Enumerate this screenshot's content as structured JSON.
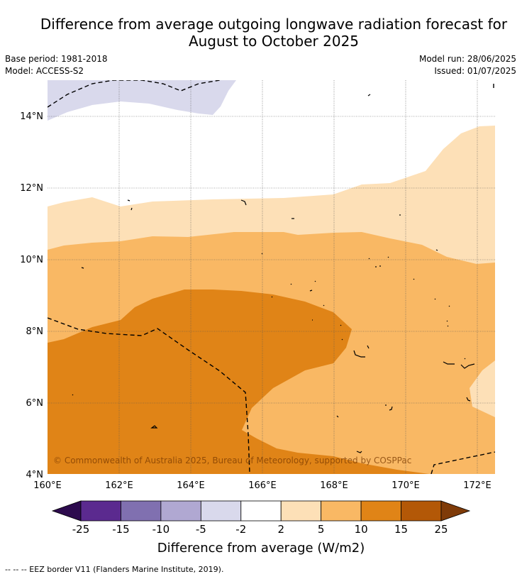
{
  "title_line1": "Difference from average outgoing longwave radiation forecast for",
  "title_line2": "August to October 2025",
  "meta": {
    "base_period": "Base period: 1981-2018",
    "model": "Model: ACCESS-S2",
    "model_run": "Model run: 28/06/2025",
    "issued": "Issued: 01/07/2025"
  },
  "map": {
    "lon_ticks": [
      "160°E",
      "162°E",
      "164°E",
      "166°E",
      "168°E",
      "170°E",
      "172°E"
    ],
    "lat_ticks": [
      "4°N",
      "6°N",
      "8°N",
      "10°N",
      "12°N",
      "14°N"
    ],
    "lon_range": [
      160,
      172.5
    ],
    "lat_range": [
      4,
      15
    ],
    "grid": true,
    "copyright": "© Commonwealth of Australia 2025, Bureau of Meteorology, supported by COSPPac"
  },
  "colorbar": {
    "label": "Difference from average (W/m2)",
    "ticks": [
      "-25",
      "-15",
      "-10",
      "-5",
      "-2",
      "2",
      "5",
      "10",
      "15",
      "25"
    ],
    "colors": [
      "#5b2a8f",
      "#8070b0",
      "#b0a8d2",
      "#d9d9ec",
      "#ffffff",
      "#fde0b7",
      "#f9b864",
      "#e08417",
      "#b35807"
    ],
    "low_extend_color": "#2d0b4e",
    "high_extend_color": "#7f3b08"
  },
  "footer": "--  --  -- EEZ border V11 (Flanders Marine Institute, 2019)."
}
